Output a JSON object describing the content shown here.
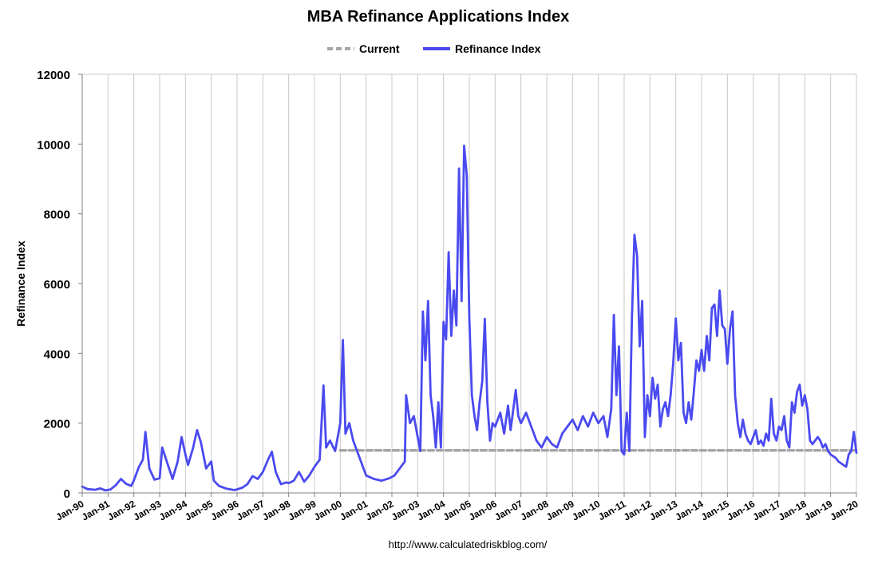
{
  "chart_data": {
    "type": "line",
    "title": "MBA Refinance Applications Index",
    "xlabel": "",
    "ylabel": "Refinance Index",
    "ylim": [
      0,
      12000
    ],
    "yticks": [
      "0",
      "2000",
      "4000",
      "6000",
      "8000",
      "10000",
      "12000"
    ],
    "xlim": [
      1990,
      2020
    ],
    "xticks": [
      "Jan-90",
      "Jan-91",
      "Jan-92",
      "Jan-93",
      "Jan-94",
      "Jan-95",
      "Jan-96",
      "Jan-97",
      "Jan-98",
      "Jan-99",
      "Jan-00",
      "Jan-01",
      "Jan-02",
      "Jan-03",
      "Jan-04",
      "Jan-05",
      "Jan-06",
      "Jan-07",
      "Jan-08",
      "Jan-09",
      "Jan-10",
      "Jan-11",
      "Jan-12",
      "Jan-13",
      "Jan-14",
      "Jan-15",
      "Jan-16",
      "Jan-17",
      "Jan-18",
      "Jan-19",
      "Jan-20"
    ],
    "grid": "vertical gridlines at each year",
    "legend_position": "top-center",
    "source_note": "http://www.calculatedriskblog.com/",
    "series": [
      {
        "name": "Current",
        "style": "dashed",
        "color": "#a6a6a6",
        "points": [
          [
            2000.0,
            1220
          ],
          [
            2020.0,
            1220
          ]
        ]
      },
      {
        "name": "Refinance Index",
        "style": "solid",
        "color": "#4a4af0",
        "points": [
          [
            1990.0,
            180
          ],
          [
            1990.2,
            110
          ],
          [
            1990.5,
            90
          ],
          [
            1990.7,
            130
          ],
          [
            1990.9,
            70
          ],
          [
            1991.1,
            100
          ],
          [
            1991.3,
            220
          ],
          [
            1991.5,
            400
          ],
          [
            1991.7,
            260
          ],
          [
            1991.9,
            200
          ],
          [
            1992.0,
            360
          ],
          [
            1992.2,
            750
          ],
          [
            1992.35,
            950
          ],
          [
            1992.45,
            1750
          ],
          [
            1992.6,
            700
          ],
          [
            1992.8,
            380
          ],
          [
            1993.0,
            420
          ],
          [
            1993.1,
            1300
          ],
          [
            1993.3,
            850
          ],
          [
            1993.5,
            400
          ],
          [
            1993.7,
            900
          ],
          [
            1993.85,
            1600
          ],
          [
            1994.0,
            1100
          ],
          [
            1994.1,
            800
          ],
          [
            1994.3,
            1300
          ],
          [
            1994.45,
            1800
          ],
          [
            1994.6,
            1450
          ],
          [
            1994.8,
            700
          ],
          [
            1995.0,
            900
          ],
          [
            1995.1,
            350
          ],
          [
            1995.3,
            200
          ],
          [
            1995.6,
            120
          ],
          [
            1995.9,
            80
          ],
          [
            1996.0,
            100
          ],
          [
            1996.2,
            150
          ],
          [
            1996.4,
            250
          ],
          [
            1996.6,
            480
          ],
          [
            1996.8,
            400
          ],
          [
            1997.0,
            600
          ],
          [
            1997.2,
            950
          ],
          [
            1997.35,
            1180
          ],
          [
            1997.5,
            600
          ],
          [
            1997.7,
            250
          ],
          [
            1997.9,
            300
          ],
          [
            1998.0,
            280
          ],
          [
            1998.2,
            350
          ],
          [
            1998.4,
            600
          ],
          [
            1998.6,
            320
          ],
          [
            1998.8,
            500
          ],
          [
            1999.0,
            750
          ],
          [
            1999.2,
            950
          ],
          [
            1999.35,
            3080
          ],
          [
            1999.45,
            1300
          ],
          [
            1999.6,
            1500
          ],
          [
            1999.8,
            1200
          ],
          [
            2000.0,
            2000
          ],
          [
            2000.1,
            4380
          ],
          [
            2000.2,
            1700
          ],
          [
            2000.35,
            2000
          ],
          [
            2000.5,
            1500
          ],
          [
            2000.7,
            1100
          ],
          [
            2001.0,
            500
          ],
          [
            2001.3,
            400
          ],
          [
            2001.6,
            350
          ],
          [
            2001.9,
            420
          ],
          [
            2002.1,
            500
          ],
          [
            2002.3,
            700
          ],
          [
            2002.5,
            900
          ],
          [
            2002.55,
            2800
          ],
          [
            2002.7,
            2000
          ],
          [
            2002.85,
            2200
          ],
          [
            2003.0,
            1600
          ],
          [
            2003.1,
            1200
          ],
          [
            2003.2,
            5200
          ],
          [
            2003.3,
            3800
          ],
          [
            2003.4,
            5500
          ],
          [
            2003.5,
            2800
          ],
          [
            2003.6,
            2200
          ],
          [
            2003.7,
            1300
          ],
          [
            2003.8,
            2600
          ],
          [
            2003.9,
            1300
          ],
          [
            2004.0,
            4900
          ],
          [
            2004.1,
            4400
          ],
          [
            2004.2,
            6900
          ],
          [
            2004.3,
            4500
          ],
          [
            2004.4,
            5800
          ],
          [
            2004.5,
            4800
          ],
          [
            2004.6,
            9300
          ],
          [
            2004.7,
            5500
          ],
          [
            2004.8,
            9950
          ],
          [
            2004.9,
            9100
          ],
          [
            2005.0,
            5000
          ],
          [
            2005.1,
            2800
          ],
          [
            2005.2,
            2200
          ],
          [
            2005.3,
            1800
          ],
          [
            2005.4,
            2600
          ],
          [
            2005.5,
            3200
          ],
          [
            2005.6,
            4990
          ],
          [
            2005.7,
            2600
          ],
          [
            2005.8,
            1500
          ],
          [
            2005.9,
            2000
          ],
          [
            2006.0,
            1900
          ],
          [
            2006.2,
            2300
          ],
          [
            2006.35,
            1700
          ],
          [
            2006.5,
            2500
          ],
          [
            2006.6,
            1800
          ],
          [
            2006.8,
            2950
          ],
          [
            2006.9,
            2200
          ],
          [
            2007.0,
            2000
          ],
          [
            2007.2,
            2300
          ],
          [
            2007.4,
            1900
          ],
          [
            2007.6,
            1500
          ],
          [
            2007.8,
            1300
          ],
          [
            2008.0,
            1600
          ],
          [
            2008.2,
            1400
          ],
          [
            2008.4,
            1300
          ],
          [
            2008.6,
            1700
          ],
          [
            2008.8,
            1900
          ],
          [
            2009.0,
            2100
          ],
          [
            2009.2,
            1800
          ],
          [
            2009.4,
            2200
          ],
          [
            2009.6,
            1900
          ],
          [
            2009.8,
            2300
          ],
          [
            2010.0,
            2000
          ],
          [
            2010.2,
            2200
          ],
          [
            2010.35,
            1600
          ],
          [
            2010.5,
            2400
          ],
          [
            2010.6,
            5100
          ],
          [
            2010.7,
            2800
          ],
          [
            2010.8,
            4200
          ],
          [
            2010.9,
            1200
          ],
          [
            2011.0,
            1100
          ],
          [
            2011.1,
            2300
          ],
          [
            2011.2,
            1200
          ],
          [
            2011.3,
            5000
          ],
          [
            2011.4,
            7400
          ],
          [
            2011.5,
            6800
          ],
          [
            2011.6,
            4200
          ],
          [
            2011.7,
            5500
          ],
          [
            2011.8,
            1600
          ],
          [
            2011.9,
            2800
          ],
          [
            2012.0,
            2200
          ],
          [
            2012.1,
            3300
          ],
          [
            2012.2,
            2700
          ],
          [
            2012.3,
            3100
          ],
          [
            2012.4,
            1900
          ],
          [
            2012.5,
            2400
          ],
          [
            2012.6,
            2600
          ],
          [
            2012.7,
            2200
          ],
          [
            2012.8,
            2800
          ],
          [
            2012.9,
            3700
          ],
          [
            2013.0,
            5000
          ],
          [
            2013.1,
            3800
          ],
          [
            2013.2,
            4300
          ],
          [
            2013.3,
            2300
          ],
          [
            2013.4,
            2000
          ],
          [
            2013.5,
            2600
          ],
          [
            2013.6,
            2100
          ],
          [
            2013.7,
            2900
          ],
          [
            2013.8,
            3800
          ],
          [
            2013.9,
            3500
          ],
          [
            2014.0,
            4100
          ],
          [
            2014.1,
            3500
          ],
          [
            2014.2,
            4500
          ],
          [
            2014.3,
            3800
          ],
          [
            2014.4,
            5300
          ],
          [
            2014.5,
            5400
          ],
          [
            2014.6,
            4500
          ],
          [
            2014.7,
            5800
          ],
          [
            2014.8,
            4800
          ],
          [
            2014.9,
            4700
          ],
          [
            2015.0,
            3700
          ],
          [
            2015.1,
            4700
          ],
          [
            2015.2,
            5200
          ],
          [
            2015.3,
            2800
          ],
          [
            2015.4,
            2000
          ],
          [
            2015.5,
            1600
          ],
          [
            2015.6,
            2100
          ],
          [
            2015.7,
            1700
          ],
          [
            2015.8,
            1500
          ],
          [
            2015.9,
            1400
          ],
          [
            2016.0,
            1600
          ],
          [
            2016.1,
            1800
          ],
          [
            2016.2,
            1400
          ],
          [
            2016.3,
            1500
          ],
          [
            2016.4,
            1350
          ],
          [
            2016.5,
            1700
          ],
          [
            2016.6,
            1500
          ],
          [
            2016.7,
            2700
          ],
          [
            2016.8,
            1700
          ],
          [
            2016.9,
            1500
          ],
          [
            2017.0,
            1900
          ],
          [
            2017.1,
            1800
          ],
          [
            2017.2,
            2200
          ],
          [
            2017.3,
            1500
          ],
          [
            2017.4,
            1300
          ],
          [
            2017.5,
            2600
          ],
          [
            2017.6,
            2300
          ],
          [
            2017.7,
            2900
          ],
          [
            2017.8,
            3100
          ],
          [
            2017.9,
            2500
          ],
          [
            2018.0,
            2800
          ],
          [
            2018.1,
            2400
          ],
          [
            2018.2,
            1500
          ],
          [
            2018.3,
            1400
          ],
          [
            2018.4,
            1500
          ],
          [
            2018.5,
            1600
          ],
          [
            2018.6,
            1500
          ],
          [
            2018.7,
            1300
          ],
          [
            2018.8,
            1400
          ],
          [
            2018.9,
            1200
          ],
          [
            2019.0,
            1100
          ],
          [
            2019.1,
            1050
          ],
          [
            2019.2,
            1000
          ],
          [
            2019.3,
            900
          ],
          [
            2019.4,
            850
          ],
          [
            2019.5,
            800
          ],
          [
            2019.6,
            750
          ],
          [
            2019.7,
            1100
          ],
          [
            2019.8,
            1200
          ],
          [
            2019.9,
            1750
          ],
          [
            2020.0,
            1150
          ]
        ]
      }
    ]
  }
}
